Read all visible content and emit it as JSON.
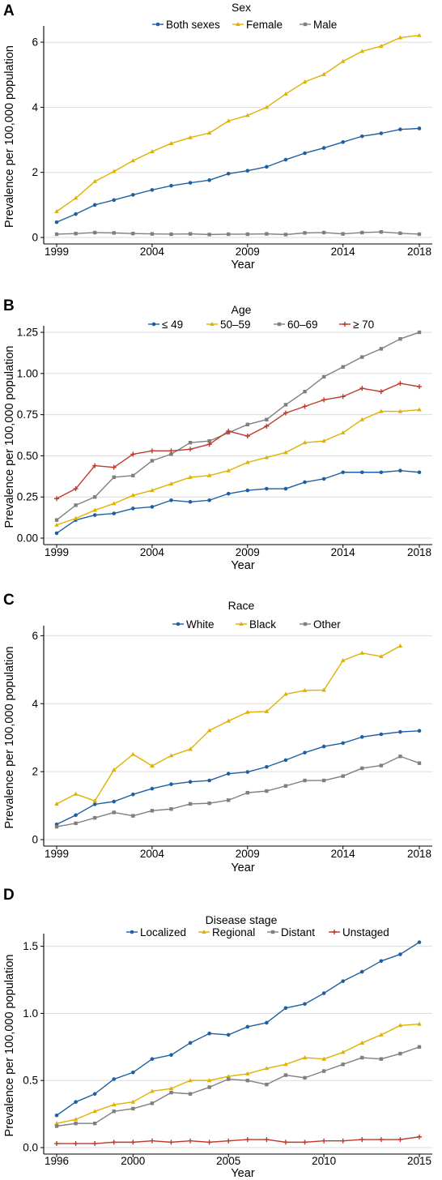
{
  "chart_data": [
    {
      "panel": "A",
      "type": "line",
      "legend_title": "Sex",
      "legend_position": "top",
      "xlabel": "Year",
      "ylabel": "Prevalence per 100,000 population",
      "x": [
        1999,
        2000,
        2001,
        2002,
        2003,
        2004,
        2005,
        2006,
        2007,
        2008,
        2009,
        2010,
        2011,
        2012,
        2013,
        2014,
        2015,
        2016,
        2017,
        2018
      ],
      "xticks": [
        1999,
        2004,
        2009,
        2014,
        2018
      ],
      "ylim": [
        0,
        6.4
      ],
      "yticks": [
        0,
        2,
        4,
        6
      ],
      "ytick_labels": [
        "0",
        "2",
        "4",
        "6"
      ],
      "grid": true,
      "series": [
        {
          "name": "Both sexes",
          "color": "#1f5fa0",
          "marker": "circle",
          "values": [
            0.47,
            0.72,
            1.0,
            1.15,
            1.31,
            1.46,
            1.59,
            1.68,
            1.76,
            1.96,
            2.05,
            2.17,
            2.39,
            2.59,
            2.75,
            2.93,
            3.11,
            3.2,
            3.32,
            3.35
          ]
        },
        {
          "name": "Female",
          "color": "#e0b100",
          "marker": "triangle",
          "values": [
            0.8,
            1.21,
            1.72,
            2.03,
            2.36,
            2.64,
            2.89,
            3.07,
            3.21,
            3.58,
            3.75,
            4.0,
            4.41,
            4.78,
            5.01,
            5.41,
            5.72,
            5.88,
            6.14,
            6.21
          ]
        },
        {
          "name": "Male",
          "color": "#7f7f7f",
          "marker": "square",
          "values": [
            0.1,
            0.12,
            0.15,
            0.14,
            0.12,
            0.11,
            0.1,
            0.11,
            0.09,
            0.1,
            0.1,
            0.11,
            0.09,
            0.14,
            0.15,
            0.11,
            0.15,
            0.17,
            0.13,
            0.1
          ]
        }
      ]
    },
    {
      "panel": "B",
      "type": "line",
      "legend_title": "Age",
      "legend_position": "top",
      "xlabel": "Year",
      "ylabel": "Prevalence per 100,000 population",
      "x": [
        1999,
        2000,
        2001,
        2002,
        2003,
        2004,
        2005,
        2006,
        2007,
        2008,
        2009,
        2010,
        2011,
        2012,
        2013,
        2014,
        2015,
        2016,
        2017,
        2018
      ],
      "xticks": [
        1999,
        2004,
        2009,
        2014,
        2018
      ],
      "ylim": [
        0,
        1.27
      ],
      "yticks": [
        0,
        0.25,
        0.5,
        0.75,
        1.0,
        1.25
      ],
      "ytick_labels": [
        "0.00",
        "0.25",
        "0.50",
        "0.75",
        "1.00",
        "1.25"
      ],
      "grid": true,
      "series": [
        {
          "name": "≤ 49",
          "color": "#1f5fa0",
          "marker": "circle",
          "values": [
            0.03,
            0.11,
            0.14,
            0.15,
            0.18,
            0.19,
            0.23,
            0.22,
            0.23,
            0.27,
            0.29,
            0.3,
            0.3,
            0.34,
            0.36,
            0.4,
            0.4,
            0.4,
            0.41,
            0.4
          ]
        },
        {
          "name": "50–59",
          "color": "#e0b100",
          "marker": "triangle",
          "values": [
            0.08,
            0.12,
            0.17,
            0.21,
            0.26,
            0.29,
            0.33,
            0.37,
            0.38,
            0.41,
            0.46,
            0.49,
            0.52,
            0.58,
            0.59,
            0.64,
            0.72,
            0.77,
            0.77,
            0.78
          ]
        },
        {
          "name": "60–69",
          "color": "#7f7f7f",
          "marker": "square",
          "values": [
            0.11,
            0.2,
            0.25,
            0.37,
            0.38,
            0.47,
            0.51,
            0.58,
            0.59,
            0.64,
            0.69,
            0.72,
            0.81,
            0.89,
            0.98,
            1.04,
            1.1,
            1.15,
            1.21,
            1.25
          ]
        },
        {
          "name": "≥ 70",
          "color": "#c0392b",
          "marker": "plus",
          "values": [
            0.24,
            0.3,
            0.44,
            0.43,
            0.51,
            0.53,
            0.53,
            0.54,
            0.57,
            0.65,
            0.62,
            0.68,
            0.76,
            0.8,
            0.84,
            0.86,
            0.91,
            0.89,
            0.94,
            0.92
          ]
        }
      ]
    },
    {
      "panel": "C",
      "type": "line",
      "legend_title": "Race",
      "legend_position": "top",
      "xlabel": "Year",
      "ylabel": "Prevalence per 100,000 population",
      "x": [
        1999,
        2000,
        2001,
        2002,
        2003,
        2004,
        2005,
        2006,
        2007,
        2008,
        2009,
        2010,
        2011,
        2012,
        2013,
        2014,
        2015,
        2016,
        2017,
        2018
      ],
      "xticks": [
        1999,
        2004,
        2009,
        2014,
        2018
      ],
      "ylim": [
        0,
        6.2
      ],
      "yticks": [
        0,
        2,
        4,
        6
      ],
      "ytick_labels": [
        "0",
        "2",
        "4",
        "6"
      ],
      "grid": true,
      "series": [
        {
          "name": "White",
          "color": "#1f5fa0",
          "marker": "circle",
          "values": [
            0.45,
            0.72,
            1.04,
            1.12,
            1.33,
            1.5,
            1.63,
            1.7,
            1.74,
            1.94,
            1.99,
            2.14,
            2.34,
            2.56,
            2.74,
            2.84,
            3.02,
            3.1,
            3.17,
            3.2
          ]
        },
        {
          "name": "Black",
          "color": "#e0b100",
          "marker": "triangle",
          "values": [
            1.05,
            1.34,
            1.14,
            2.05,
            2.51,
            2.17,
            2.47,
            2.66,
            3.21,
            3.49,
            3.75,
            3.77,
            4.28,
            4.39,
            4.4,
            5.27,
            5.49,
            5.39,
            5.7,
            null
          ]
        },
        {
          "name": "Other",
          "color": "#7f7f7f",
          "marker": "square",
          "values": [
            0.38,
            0.48,
            0.64,
            0.8,
            0.7,
            0.85,
            0.9,
            1.05,
            1.07,
            1.16,
            1.38,
            1.43,
            1.58,
            1.74,
            1.74,
            1.87,
            2.1,
            2.18,
            2.45,
            2.25
          ]
        }
      ]
    },
    {
      "panel": "D",
      "type": "line",
      "legend_title": "Disease stage",
      "legend_position": "top",
      "xlabel": "Year",
      "ylabel": "Prevalence per 100,000 population",
      "x": [
        1996,
        1997,
        1998,
        1999,
        2000,
        2001,
        2002,
        2003,
        2004,
        2005,
        2006,
        2007,
        2008,
        2009,
        2010,
        2011,
        2012,
        2013,
        2014,
        2015
      ],
      "xticks": [
        1996,
        2000,
        2005,
        2010,
        2015
      ],
      "ylim": [
        0,
        1.57
      ],
      "yticks": [
        0,
        0.5,
        1.0,
        1.5
      ],
      "ytick_labels": [
        "0.0",
        "0.5",
        "1.0",
        "1.5"
      ],
      "grid": true,
      "series": [
        {
          "name": "Localized",
          "color": "#1f5fa0",
          "marker": "circle",
          "values": [
            0.24,
            0.34,
            0.4,
            0.51,
            0.56,
            0.66,
            0.69,
            0.78,
            0.85,
            0.84,
            0.9,
            0.93,
            1.04,
            1.07,
            1.15,
            1.24,
            1.31,
            1.39,
            1.44,
            1.53
          ]
        },
        {
          "name": "Regional",
          "color": "#e0b100",
          "marker": "triangle",
          "values": [
            0.18,
            0.21,
            0.27,
            0.32,
            0.34,
            0.42,
            0.44,
            0.5,
            0.5,
            0.53,
            0.55,
            0.59,
            0.62,
            0.67,
            0.66,
            0.71,
            0.78,
            0.84,
            0.91,
            0.92
          ]
        },
        {
          "name": "Distant",
          "color": "#7f7f7f",
          "marker": "square",
          "values": [
            0.16,
            0.18,
            0.18,
            0.27,
            0.29,
            0.33,
            0.41,
            0.4,
            0.45,
            0.51,
            0.5,
            0.47,
            0.54,
            0.52,
            0.57,
            0.62,
            0.67,
            0.66,
            0.7,
            0.75
          ]
        },
        {
          "name": "Unstaged",
          "color": "#c0392b",
          "marker": "plus",
          "values": [
            0.03,
            0.03,
            0.03,
            0.04,
            0.04,
            0.05,
            0.04,
            0.05,
            0.04,
            0.05,
            0.06,
            0.06,
            0.04,
            0.04,
            0.05,
            0.05,
            0.06,
            0.06,
            0.06,
            0.08
          ]
        }
      ]
    }
  ]
}
